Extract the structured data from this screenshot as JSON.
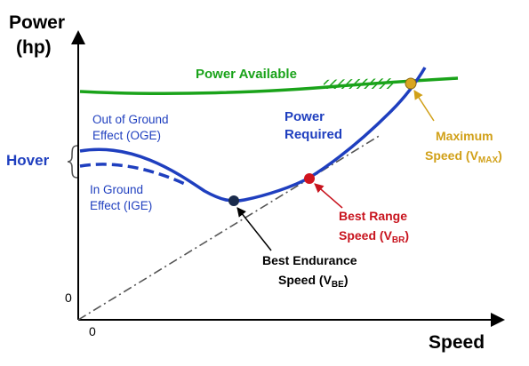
{
  "axes": {
    "y_label_line1": "Power",
    "y_label_line2": "(hp)",
    "x_label": "Speed",
    "origin_y": "0",
    "origin_x": "0"
  },
  "curves": {
    "power_available": {
      "label": "Power Available",
      "color": "#1aa31a"
    },
    "power_required": {
      "label_line1": "Power",
      "label_line2": "Required",
      "color": "#1f3fbf"
    },
    "ige_curve": {
      "color": "#1f3fbf"
    },
    "hover_line": {
      "color": "#555555"
    }
  },
  "annotations": {
    "hover": {
      "label": "Hover",
      "color": "#1f3fbf"
    },
    "oge": {
      "line1": "Out of Ground",
      "line2": "Effect (OGE)",
      "color": "#1f3fbf"
    },
    "ige": {
      "line1": "In Ground",
      "line2": "Effect (IGE)",
      "color": "#1f3fbf"
    },
    "max_speed": {
      "line1": "Maximum",
      "line2_main": "Speed (V",
      "line2_sub": "MAX",
      "line2_end": ")",
      "color": "#d1a018"
    },
    "best_range": {
      "line1": "Best Range",
      "line2_main": "Speed (V",
      "line2_sub": "BR",
      "line2_end": ")",
      "color": "#c8141e"
    },
    "best_endurance": {
      "line1": "Best Endurance",
      "line2_main": "Speed (V",
      "line2_sub": "BE",
      "line2_end": ")",
      "color": "#000000"
    }
  },
  "points": {
    "best_endurance_color": "#1a2b4c",
    "best_range_color": "#d0141e",
    "max_speed_color": "#d9a520"
  }
}
